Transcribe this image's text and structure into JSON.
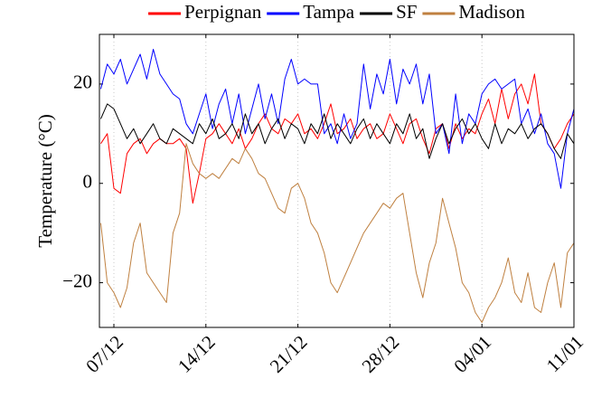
{
  "chart_data": {
    "type": "line",
    "y_label": "Temperature (°C)",
    "x": [
      -1,
      -0.5,
      0,
      0.5,
      1,
      1.5,
      2,
      2.5,
      3,
      3.5,
      4,
      4.5,
      5,
      5.5,
      6,
      6.5,
      7,
      7.5,
      8,
      8.5,
      9,
      9.5,
      10,
      10.5,
      11,
      11.5,
      12,
      12.5,
      13,
      13.5,
      14,
      14.5,
      15,
      15.5,
      16,
      16.5,
      17,
      17.5,
      18,
      18.5,
      19,
      19.5,
      20,
      20.5,
      21,
      21.5,
      22,
      22.5,
      23,
      23.5,
      24,
      24.5,
      25,
      25.5,
      26,
      26.5,
      27,
      27.5,
      28,
      28.5,
      29,
      29.5,
      30,
      30.5,
      31,
      31.5,
      32,
      32.5,
      33,
      33.5,
      34,
      34.5,
      35
    ],
    "xlim": [
      -1.1,
      35
    ],
    "xticks": [
      {
        "value": 0,
        "label": "07/12"
      },
      {
        "value": 7,
        "label": "14/12"
      },
      {
        "value": 14,
        "label": "21/12"
      },
      {
        "value": 21,
        "label": "28/12"
      },
      {
        "value": 28,
        "label": "04/01"
      },
      {
        "value": 35,
        "label": "11/01"
      }
    ],
    "ylim": [
      -29,
      30
    ],
    "yticks": [
      {
        "value": -20,
        "label": "−20"
      },
      0,
      20
    ],
    "grid": "x",
    "legend": "top",
    "series": [
      {
        "name": "Perpignan",
        "color": "#ff0000",
        "values": [
          8,
          10,
          -1,
          -2,
          6,
          8,
          9,
          6,
          8,
          9,
          8,
          8,
          9,
          7,
          -4,
          2,
          9,
          10,
          12,
          10,
          8,
          11,
          7,
          9,
          12,
          14,
          11,
          10,
          13,
          12,
          14,
          10,
          11,
          9,
          12,
          16,
          10,
          11,
          13,
          9,
          11,
          12,
          9,
          10,
          14,
          11,
          8,
          12,
          13,
          9,
          6,
          11,
          12,
          7,
          12,
          9,
          11,
          10,
          14,
          17,
          12,
          19,
          13,
          18,
          20,
          16,
          22,
          12,
          10,
          7,
          9,
          12,
          14
        ]
      },
      {
        "name": "Tampa",
        "color": "#0000ff",
        "values": [
          19,
          24,
          22,
          25,
          20,
          23,
          26,
          21,
          27,
          22,
          20,
          18,
          17,
          12,
          10,
          14,
          18,
          11,
          16,
          19,
          12,
          18,
          10,
          15,
          20,
          13,
          18,
          12,
          21,
          25,
          20,
          21,
          20,
          20,
          10,
          12,
          8,
          14,
          9,
          12,
          24,
          15,
          22,
          18,
          25,
          16,
          23,
          20,
          24,
          16,
          22,
          10,
          12,
          6,
          18,
          8,
          14,
          12,
          18,
          20,
          21,
          19,
          20,
          21,
          12,
          15,
          10,
          14,
          8,
          6,
          -1,
          10,
          15
        ]
      },
      {
        "name": "SF",
        "color": "#000000",
        "values": [
          13,
          16,
          15,
          12,
          9,
          11,
          8,
          10,
          12,
          9,
          8,
          11,
          10,
          9,
          8,
          12,
          10,
          13,
          9,
          10,
          12,
          9,
          14,
          10,
          12,
          8,
          11,
          13,
          9,
          12,
          11,
          8,
          12,
          10,
          14,
          9,
          12,
          10,
          8,
          11,
          13,
          9,
          12,
          10,
          8,
          12,
          10,
          14,
          9,
          11,
          5,
          9,
          12,
          8,
          11,
          13,
          10,
          12,
          9,
          7,
          12,
          8,
          11,
          10,
          12,
          9,
          11,
          12,
          10,
          7,
          5,
          10,
          8
        ]
      },
      {
        "name": "Madison",
        "color": "#bf8040",
        "values": [
          -8,
          -20,
          -22,
          -25,
          -21,
          -12,
          -8,
          -18,
          -20,
          -22,
          -24,
          -10,
          -6,
          8,
          4,
          2,
          1,
          2,
          1,
          3,
          5,
          4,
          7,
          5,
          2,
          1,
          -2,
          -5,
          -6,
          -1,
          0,
          -3,
          -8,
          -10,
          -14,
          -20,
          -22,
          -19,
          -16,
          -13,
          -10,
          -8,
          -6,
          -4,
          -5,
          -3,
          -2,
          -10,
          -18,
          -23,
          -16,
          -12,
          -3,
          -8,
          -13,
          -20,
          -22,
          -26,
          -28,
          -25,
          -23,
          -20,
          -15,
          -22,
          -24,
          -18,
          -25,
          -26,
          -20,
          -16,
          -25,
          -14,
          -12
        ]
      }
    ]
  }
}
